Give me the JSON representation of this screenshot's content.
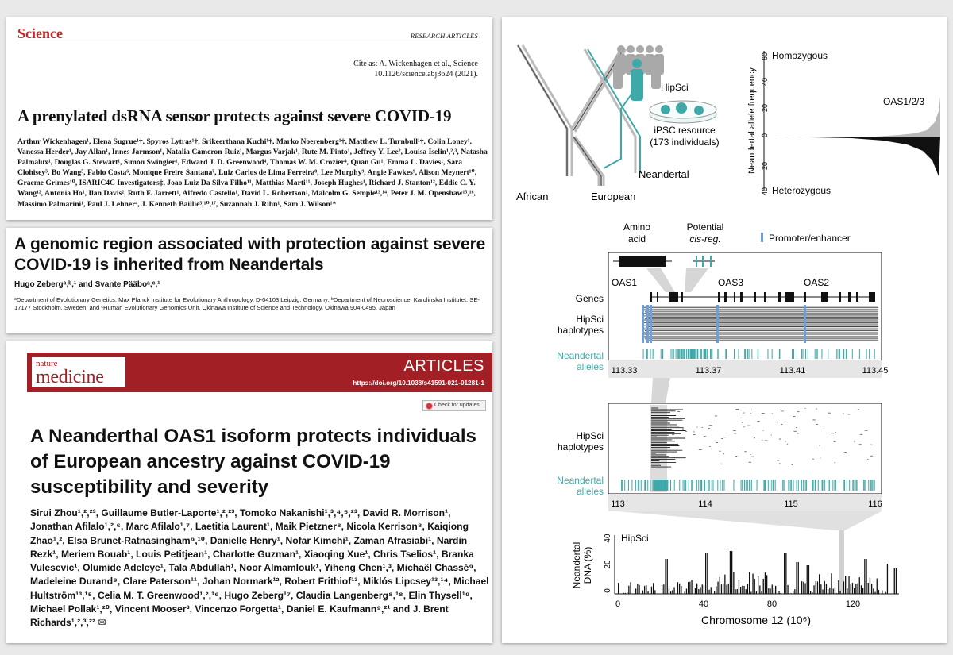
{
  "science": {
    "logo": "Science",
    "section": "RESEARCH ARTICLES",
    "cite_line1": "Cite as: A. Wickenhagen et al., Science",
    "cite_line2": "10.1126/science.abj3624 (2021).",
    "title": "A prenylated dsRNA sensor protects against severe COVID-19",
    "authors": "Arthur Wickenhagen¹, Elena Sugrue¹†, Spyros Lytras¹†, Srikeerthana Kuchi¹†, Marko Noerenberg¹†, Matthew L. Turnbull¹†, Colin Loney¹, Vanessa Herder¹, Jay Allan¹, Innes Jarmson¹, Natalia Cameron-Ruiz¹, Margus Varjak¹, Rute M. Pinto¹, Jeffrey Y. Lee², Louisa Iselin¹,²,³, Natasha Palmalux¹, Douglas G. Stewart¹, Simon Swingler¹, Edward J. D. Greenwood⁴, Thomas W. M. Crozier⁴, Quan Gu¹, Emma L. Davies¹, Sara Clohisey⁵, Bo Wang⁵, Fabio Costa⁶, Monique Freire Santana⁷, Luiz Carlos de Lima Ferreira⁸, Lee Murphy⁹, Angie Fawkes⁹, Alison Meynert¹⁰, Graeme Grimes¹⁰, ISARIC4C Investigators‡, Joao Luiz Da Silva Filho¹¹, Matthias Marti¹¹, Joseph Hughes¹, Richard J. Stanton¹², Eddie C. Y. Wang¹², Antonia Ho¹, Ilan Davis², Ruth F. Jarrett¹, Alfredo Castello¹, David L. Robertson¹, Malcolm G. Semple¹³,¹⁴, Peter J. M. Openshaw¹⁵,¹⁶, Massimo Palmarini¹, Paul J. Lehner⁴, J. Kenneth Baillie⁵,¹⁰,¹⁷, Suzannah J. Rihn¹, Sam J. Wilson¹*"
  },
  "pnas": {
    "title": "A genomic region associated with protection against severe COVID-19 is inherited from Neandertals",
    "authors": "Hugo Zebergᵃ,ᵇ,¹ and Svante Pääboᵃ,ᶜ,¹",
    "affiliations": "ᵃDepartment of Evolutionary Genetics, Max Planck Institute for Evolutionary Anthropology, D-04103 Leipzig, Germany; ᵇDepartment of Neuroscience, Karolinska Institutet, SE-17177 Stockholm, Sweden; and ᶜHuman Evolutionary Genomics Unit, Okinawa Institute of Science and Technology, Okinawa 904-0495, Japan"
  },
  "nature_medicine": {
    "logo_top": "nature",
    "logo_bottom": "medicine",
    "section": "ARTICLES",
    "doi": "https://doi.org/10.1038/s41591-021-01281-1",
    "check_updates": "Check for updates",
    "title": "A Neanderthal OAS1 isoform protects individuals of European ancestry against COVID-19 susceptibility and severity",
    "authors": "Sirui Zhou¹,²,²³, Guillaume Butler-Laporte¹,²,²³, Tomoko Nakanishi¹,³,⁴,⁵,²³, David R. Morrison¹, Jonathan Afilalo¹,²,⁶, Marc Afilalo¹,⁷, Laetitia Laurent¹, Maik Pietzner⁸, Nicola Kerrison⁸, Kaiqiong Zhao¹,², Elsa Brunet-Ratnasingham⁹,¹⁰, Danielle Henry¹, Nofar Kimchi¹, Zaman Afrasiabi¹, Nardin Rezk¹, Meriem Bouab¹, Louis Petitjean¹, Charlotte Guzman¹, Xiaoqing Xue¹, Chris Tselios¹, Branka Vulesevic¹, Olumide Adeleye¹, Tala Abdullah¹, Noor Almamlouk¹, Yiheng Chen¹,³, Michaël Chassé⁹, Madeleine Durand⁹, Clare Paterson¹¹, Johan Normark¹², Robert Frithiof¹³, Miklós Lipcsey¹³,¹⁴, Michael Hultström¹³,¹⁵, Celia M. T. Greenwood¹,²,¹⁶, Hugo Zeberg¹⁷, Claudia Langenberg⁸,¹⁸, Elin Thysell¹⁹, Michael Pollak¹,²⁰, Vincent Mooser³, Vincenzo Forgetta¹, Daniel E. Kaufmann⁹,²¹ and J. Brent Richards¹,²,³,²² ✉"
  },
  "figure": {
    "colors": {
      "neandertal": "#3fa9a9",
      "promoter": "#6f9fd8",
      "haplotype": "#333333"
    },
    "tree_labels": {
      "african": "African",
      "european": "European",
      "neandertal": "Neandertal",
      "hipsci": "HipSci",
      "ipsc_line1": "iPSC resource",
      "ipsc_line2": "(173 individuals)"
    },
    "freq_plot": {
      "ylabel": "Neandertal allele frequency",
      "homozygous": "Homozygous",
      "heterozygous": "Heterozygous",
      "peak_label": "OAS1/2/3",
      "ticks_top": [
        "60",
        "40",
        "20",
        "0"
      ],
      "ticks_bottom": [
        "20",
        "40"
      ]
    },
    "gene_panel": {
      "amino_acid_line1": "Amino",
      "amino_acid_line2": "acid",
      "potential_line1": "Potential",
      "potential_line2": "cis-reg.",
      "promoter_legend": "Promoter/enhancer",
      "genes": [
        "OAS1",
        "OAS3",
        "OAS2"
      ],
      "row_genes": "Genes",
      "row_hap1": "HipSci",
      "row_hap2": "haplotypes",
      "row_nea1": "Neandertal",
      "row_nea2": "alleles",
      "xticks": [
        "113.33",
        "113.37",
        "113.41",
        "113.45"
      ]
    },
    "region_panel": {
      "row_hap1": "HipSci",
      "row_hap2": "haplotypes",
      "row_nea1": "Neandertal",
      "row_nea2": "alleles",
      "xticks": [
        "113",
        "114",
        "115",
        "116"
      ]
    },
    "chrom_panel": {
      "label": "HipSci",
      "ylabel1": "Neandertal",
      "ylabel2": "DNA (%)",
      "yticks": [
        "0",
        "20",
        "40"
      ],
      "xticks": [
        "0",
        "40",
        "80",
        "120"
      ],
      "xlabel": "Chromosome 12 (10⁶)"
    }
  }
}
